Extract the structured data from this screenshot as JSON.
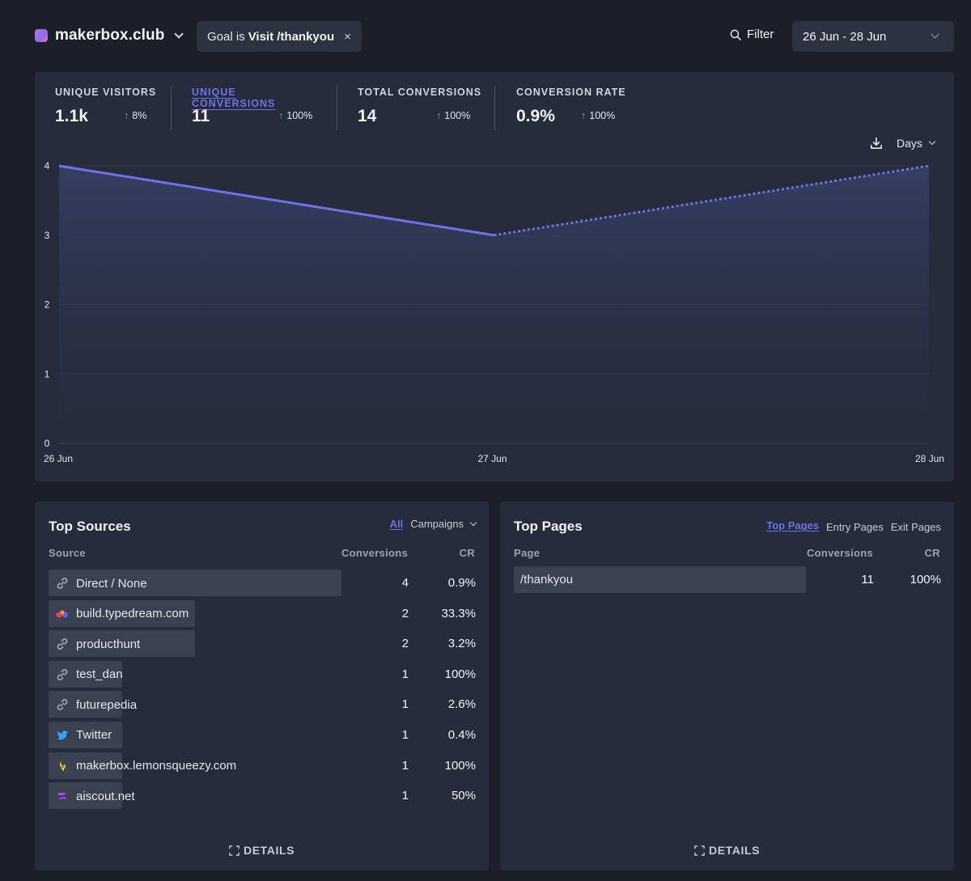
{
  "header": {
    "site_name": "makerbox.club",
    "goal_prefix": "Goal is",
    "goal_value": "Visit /thankyou",
    "goal_close": "×",
    "filter_label": "Filter",
    "date_range": "26 Jun - 28 Jun"
  },
  "metrics": [
    {
      "label": "UNIQUE VISITORS",
      "value": "1.1k",
      "change": "8%"
    },
    {
      "label": "UNIQUE CONVERSIONS",
      "value": "11",
      "change": "100%"
    },
    {
      "label": "TOTAL CONVERSIONS",
      "value": "14",
      "change": "100%"
    },
    {
      "label": "CONVERSION RATE",
      "value": "0.9%",
      "change": "100%"
    }
  ],
  "interval_label": "Days",
  "colors": {
    "accent": "#6f72e6",
    "positive": "#34d399",
    "background": "#1b1f2a",
    "panel": "#262c3b",
    "bar": "#3a4150"
  },
  "chart_data": {
    "type": "line",
    "x": [
      "26 Jun",
      "27 Jun",
      "28 Jun"
    ],
    "series": [
      {
        "values": [
          4,
          3,
          4
        ]
      }
    ],
    "solid_through_index": 1,
    "dashed_from_index": 1,
    "ylim": [
      0,
      4
    ],
    "yticks": [
      "0",
      "1",
      "2",
      "3",
      "4"
    ],
    "grid": true,
    "area_fill": true
  },
  "top_sources": {
    "title": "Top Sources",
    "tab_all": "All",
    "tab_campaigns": "Campaigns",
    "col_source": "Source",
    "col_conversions": "Conversions",
    "col_cr": "CR",
    "rows": [
      {
        "label": "Direct / None",
        "conversions": "4",
        "cr": "0.9%",
        "share": 1.0,
        "icon": "link-icon"
      },
      {
        "label": "build.typedream.com",
        "conversions": "2",
        "cr": "33.3%",
        "share": 0.5,
        "icon": "typedream-icon"
      },
      {
        "label": "producthunt",
        "conversions": "2",
        "cr": "3.2%",
        "share": 0.5,
        "icon": "link-icon"
      },
      {
        "label": "test_dan",
        "conversions": "1",
        "cr": "100%",
        "share": 0.25,
        "icon": "link-icon"
      },
      {
        "label": "futurepedia",
        "conversions": "1",
        "cr": "2.6%",
        "share": 0.25,
        "icon": "link-icon"
      },
      {
        "label": "Twitter",
        "conversions": "1",
        "cr": "0.4%",
        "share": 0.25,
        "icon": "twitter-icon"
      },
      {
        "label": "makerbox.lemonsqueezy.com",
        "conversions": "1",
        "cr": "100%",
        "share": 0.25,
        "icon": "lemonsqueezy-icon"
      },
      {
        "label": "aiscout.net",
        "conversions": "1",
        "cr": "50%",
        "share": 0.25,
        "icon": "aiscout-icon"
      }
    ],
    "details_label": "DETAILS"
  },
  "top_pages": {
    "title": "Top Pages",
    "tab_top": "Top Pages",
    "tab_entry": "Entry Pages",
    "tab_exit": "Exit Pages",
    "col_page": "Page",
    "col_conversions": "Conversions",
    "col_cr": "CR",
    "rows": [
      {
        "label": "/thankyou",
        "conversions": "11",
        "cr": "100%",
        "share": 1.0
      }
    ],
    "details_label": "DETAILS"
  }
}
